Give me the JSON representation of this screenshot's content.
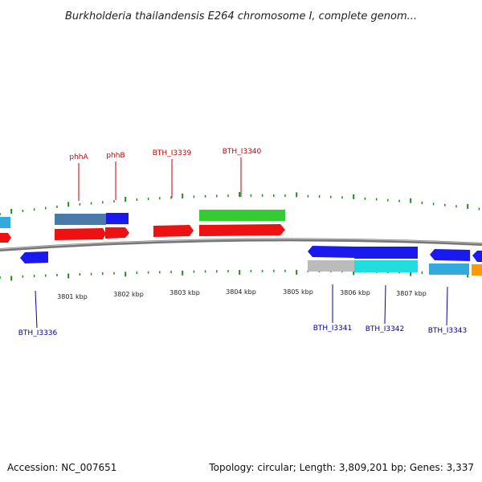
{
  "title": "Burkholderia thailandensis E264 chromosome I, complete genom...",
  "footer": {
    "accession": "Accession: NC_007651",
    "summary": "Topology: circular; Length: 3,809,201 bp; Genes: 3,337"
  },
  "kbp_labels": [
    "3801 kbp",
    "3802 kbp",
    "3803 kbp",
    "3804 kbp",
    "3805 kbp",
    "3806 kbp",
    "3807 kbp"
  ],
  "top_gene_labels": [
    "phhA",
    "phhB",
    "BTH_I3339",
    "BTH_I3340"
  ],
  "bottom_gene_labels": [
    "BTH_I3336",
    "BTH_I3341",
    "BTH_I3342",
    "BTH_I3343"
  ],
  "colors": {
    "forward_gene": "#ee1111",
    "reverse_gene": "#1a1aee",
    "rna_green": "#33cc33",
    "steel": "#4a7aaa",
    "cyan": "#22dddd",
    "light_blue": "#33aadd",
    "grey": "#bbbbbb",
    "orange": "#ff9900",
    "tick": "#228822",
    "backbone": "#777777"
  }
}
